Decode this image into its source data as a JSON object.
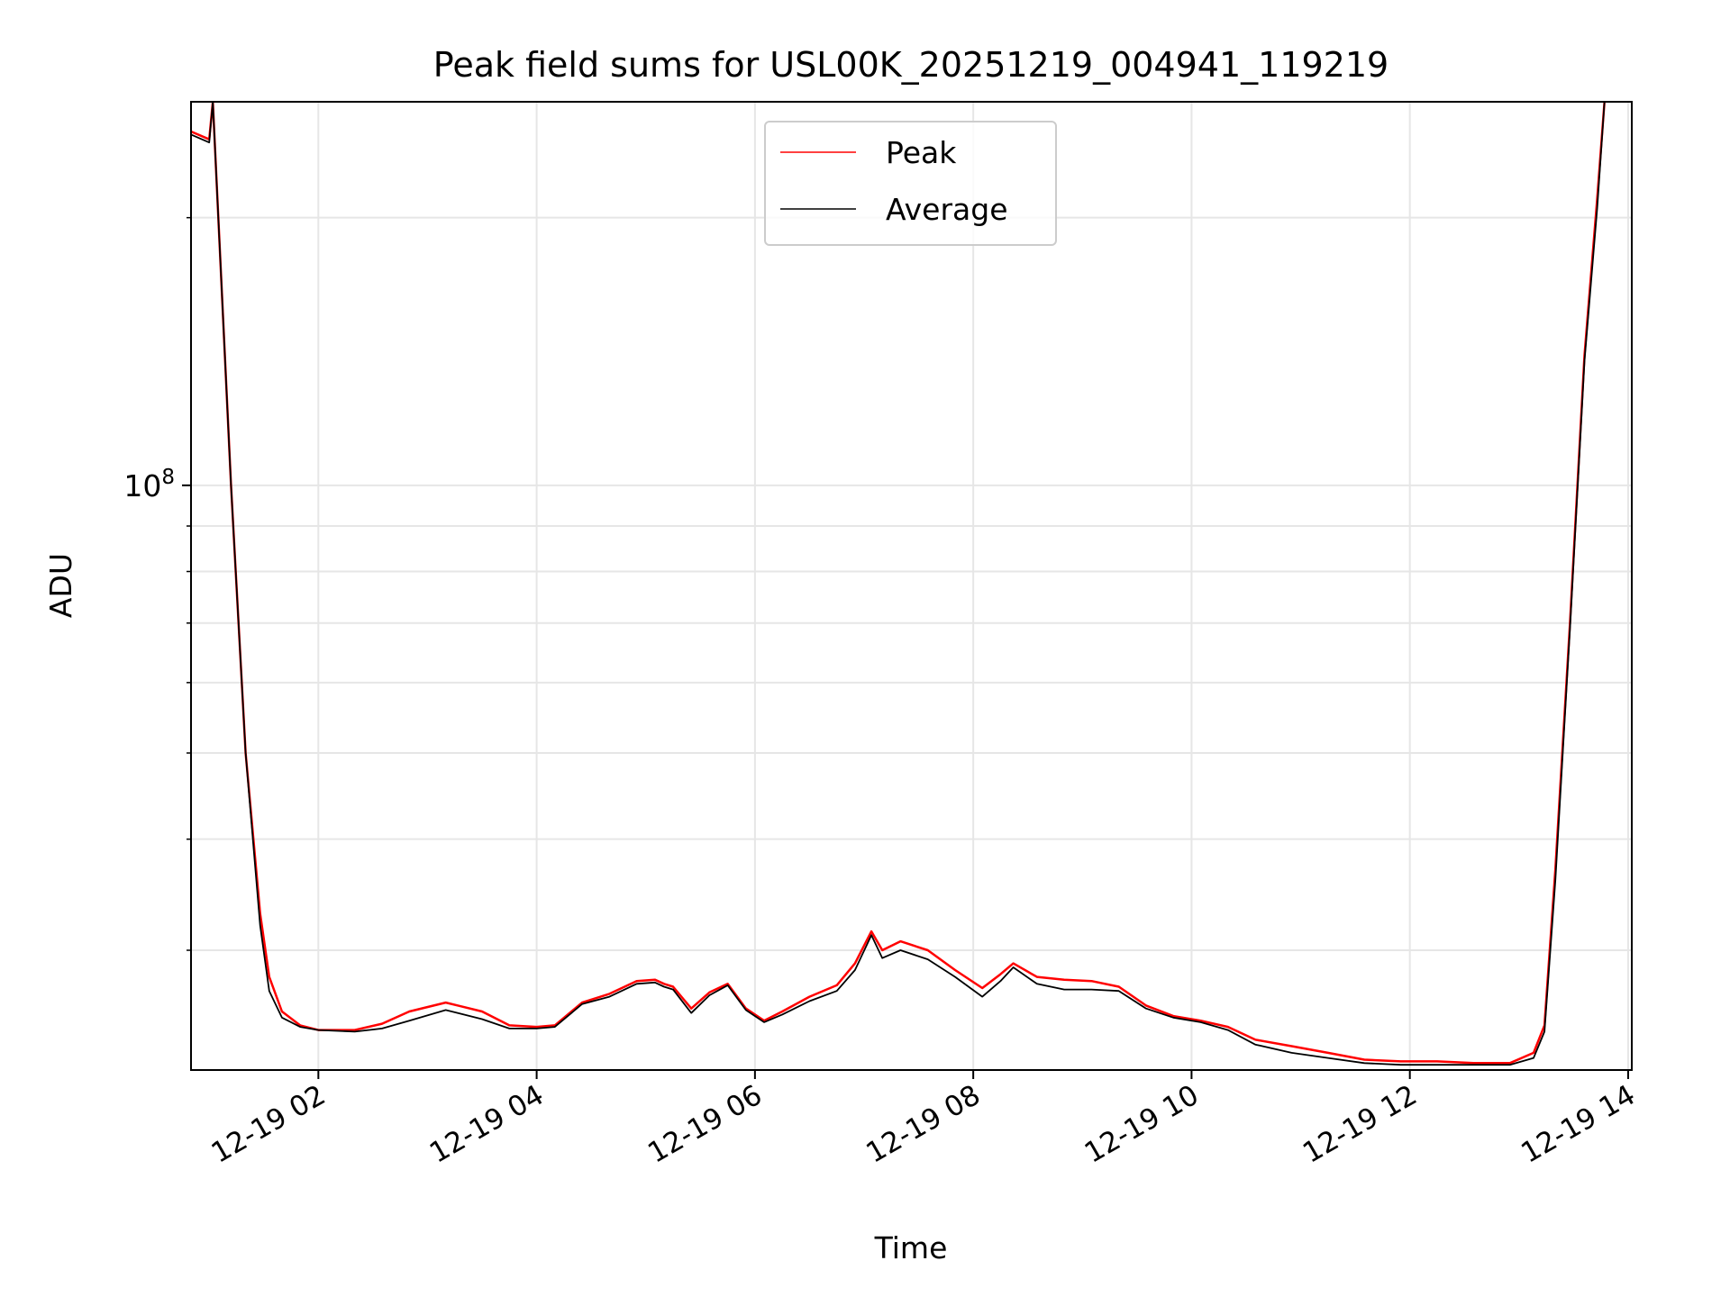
{
  "chart_data": {
    "type": "line",
    "title": "Peak field sums for USL00K_20251219_004941_119219",
    "xlabel": "Time",
    "ylabel": "ADU",
    "y_scale": "log",
    "ylim": [
      22000000,
      270000000
    ],
    "xlim": [
      "2025-12-19 00:50",
      "2025-12-19 14:02"
    ],
    "x_ticks": [
      {
        "t": "2025-12-19 02:00",
        "label": "12-19 02"
      },
      {
        "t": "2025-12-19 04:00",
        "label": "12-19 04"
      },
      {
        "t": "2025-12-19 06:00",
        "label": "12-19 06"
      },
      {
        "t": "2025-12-19 08:00",
        "label": "12-19 08"
      },
      {
        "t": "2025-12-19 10:00",
        "label": "12-19 10"
      },
      {
        "t": "2025-12-19 12:00",
        "label": "12-19 12"
      },
      {
        "t": "2025-12-19 14:00",
        "label": "12-19 14"
      }
    ],
    "y_major_ticks": [
      {
        "value": 100000000,
        "base": "10",
        "exp": "8"
      }
    ],
    "y_minor_ticks": [
      30000000,
      40000000,
      50000000,
      60000000,
      70000000,
      80000000,
      90000000,
      200000000
    ],
    "grid": true,
    "legend_position": "upper-center",
    "series": [
      {
        "name": "Peak",
        "color": "#ff0000",
        "points": [
          [
            "2025-12-19 00:50",
            250000000
          ],
          [
            "2025-12-19 01:00",
            245000000
          ],
          [
            "2025-12-19 01:02",
            270000000
          ],
          [
            "2025-12-19 01:05",
            200000000
          ],
          [
            "2025-12-19 01:12",
            100000000
          ],
          [
            "2025-12-19 01:20",
            50000000
          ],
          [
            "2025-12-19 01:28",
            33000000
          ],
          [
            "2025-12-19 01:33",
            28000000
          ],
          [
            "2025-12-19 01:40",
            25600000
          ],
          [
            "2025-12-19 01:50",
            24700000
          ],
          [
            "2025-12-19 02:00",
            24400000
          ],
          [
            "2025-12-19 02:20",
            24400000
          ],
          [
            "2025-12-19 02:35",
            24800000
          ],
          [
            "2025-12-19 02:50",
            25600000
          ],
          [
            "2025-12-19 03:10",
            26200000
          ],
          [
            "2025-12-19 03:30",
            25600000
          ],
          [
            "2025-12-19 03:45",
            24700000
          ],
          [
            "2025-12-19 04:00",
            24600000
          ],
          [
            "2025-12-19 04:10",
            24700000
          ],
          [
            "2025-12-19 04:25",
            26200000
          ],
          [
            "2025-12-19 04:40",
            26800000
          ],
          [
            "2025-12-19 04:55",
            27700000
          ],
          [
            "2025-12-19 05:05",
            27800000
          ],
          [
            "2025-12-19 05:10",
            27500000
          ],
          [
            "2025-12-19 05:15",
            27300000
          ],
          [
            "2025-12-19 05:25",
            25800000
          ],
          [
            "2025-12-19 05:35",
            26900000
          ],
          [
            "2025-12-19 05:45",
            27500000
          ],
          [
            "2025-12-19 05:55",
            25800000
          ],
          [
            "2025-12-19 06:05",
            25000000
          ],
          [
            "2025-12-19 06:15",
            25600000
          ],
          [
            "2025-12-19 06:30",
            26600000
          ],
          [
            "2025-12-19 06:45",
            27400000
          ],
          [
            "2025-12-19 06:55",
            29000000
          ],
          [
            "2025-12-19 07:04",
            31500000
          ],
          [
            "2025-12-19 07:10",
            30000000
          ],
          [
            "2025-12-19 07:20",
            30700000
          ],
          [
            "2025-12-19 07:35",
            30000000
          ],
          [
            "2025-12-19 07:50",
            28500000
          ],
          [
            "2025-12-19 08:05",
            27200000
          ],
          [
            "2025-12-19 08:15",
            28200000
          ],
          [
            "2025-12-19 08:22",
            29000000
          ],
          [
            "2025-12-19 08:35",
            28000000
          ],
          [
            "2025-12-19 08:50",
            27800000
          ],
          [
            "2025-12-19 09:05",
            27700000
          ],
          [
            "2025-12-19 09:20",
            27300000
          ],
          [
            "2025-12-19 09:35",
            26000000
          ],
          [
            "2025-12-19 09:50",
            25300000
          ],
          [
            "2025-12-19 10:05",
            25000000
          ],
          [
            "2025-12-19 10:20",
            24600000
          ],
          [
            "2025-12-19 10:35",
            23800000
          ],
          [
            "2025-12-19 10:55",
            23400000
          ],
          [
            "2025-12-19 11:15",
            23000000
          ],
          [
            "2025-12-19 11:35",
            22600000
          ],
          [
            "2025-12-19 11:55",
            22500000
          ],
          [
            "2025-12-19 12:15",
            22500000
          ],
          [
            "2025-12-19 12:35",
            22400000
          ],
          [
            "2025-12-19 12:55",
            22400000
          ],
          [
            "2025-12-19 13:08",
            23000000
          ],
          [
            "2025-12-19 13:14",
            24700000
          ],
          [
            "2025-12-19 13:20",
            37000000
          ],
          [
            "2025-12-19 13:28",
            70000000
          ],
          [
            "2025-12-19 13:36",
            140000000
          ],
          [
            "2025-12-19 13:43",
            210000000
          ],
          [
            "2025-12-19 13:47",
            270000000
          ]
        ]
      },
      {
        "name": "Average",
        "color": "#000000",
        "points": [
          [
            "2025-12-19 00:50",
            248000000
          ],
          [
            "2025-12-19 01:00",
            243000000
          ],
          [
            "2025-12-19 01:02",
            270000000
          ],
          [
            "2025-12-19 01:05",
            200000000
          ],
          [
            "2025-12-19 01:12",
            100000000
          ],
          [
            "2025-12-19 01:20",
            50000000
          ],
          [
            "2025-12-19 01:28",
            32000000
          ],
          [
            "2025-12-19 01:33",
            27000000
          ],
          [
            "2025-12-19 01:40",
            25200000
          ],
          [
            "2025-12-19 01:50",
            24600000
          ],
          [
            "2025-12-19 02:00",
            24400000
          ],
          [
            "2025-12-19 02:20",
            24300000
          ],
          [
            "2025-12-19 02:35",
            24500000
          ],
          [
            "2025-12-19 02:50",
            25000000
          ],
          [
            "2025-12-19 03:10",
            25700000
          ],
          [
            "2025-12-19 03:30",
            25100000
          ],
          [
            "2025-12-19 03:45",
            24500000
          ],
          [
            "2025-12-19 04:00",
            24500000
          ],
          [
            "2025-12-19 04:10",
            24600000
          ],
          [
            "2025-12-19 04:25",
            26100000
          ],
          [
            "2025-12-19 04:40",
            26600000
          ],
          [
            "2025-12-19 04:55",
            27500000
          ],
          [
            "2025-12-19 05:05",
            27600000
          ],
          [
            "2025-12-19 05:10",
            27300000
          ],
          [
            "2025-12-19 05:15",
            27100000
          ],
          [
            "2025-12-19 05:25",
            25500000
          ],
          [
            "2025-12-19 05:35",
            26700000
          ],
          [
            "2025-12-19 05:45",
            27400000
          ],
          [
            "2025-12-19 05:55",
            25700000
          ],
          [
            "2025-12-19 06:05",
            24900000
          ],
          [
            "2025-12-19 06:15",
            25400000
          ],
          [
            "2025-12-19 06:30",
            26300000
          ],
          [
            "2025-12-19 06:45",
            27000000
          ],
          [
            "2025-12-19 06:55",
            28500000
          ],
          [
            "2025-12-19 07:04",
            31200000
          ],
          [
            "2025-12-19 07:10",
            29400000
          ],
          [
            "2025-12-19 07:20",
            30000000
          ],
          [
            "2025-12-19 07:35",
            29300000
          ],
          [
            "2025-12-19 07:50",
            28000000
          ],
          [
            "2025-12-19 08:05",
            26600000
          ],
          [
            "2025-12-19 08:15",
            27700000
          ],
          [
            "2025-12-19 08:22",
            28700000
          ],
          [
            "2025-12-19 08:35",
            27500000
          ],
          [
            "2025-12-19 08:50",
            27100000
          ],
          [
            "2025-12-19 09:05",
            27100000
          ],
          [
            "2025-12-19 09:20",
            27000000
          ],
          [
            "2025-12-19 09:35",
            25800000
          ],
          [
            "2025-12-19 09:50",
            25200000
          ],
          [
            "2025-12-19 10:05",
            24900000
          ],
          [
            "2025-12-19 10:20",
            24400000
          ],
          [
            "2025-12-19 10:35",
            23500000
          ],
          [
            "2025-12-19 10:55",
            23000000
          ],
          [
            "2025-12-19 11:15",
            22700000
          ],
          [
            "2025-12-19 11:35",
            22400000
          ],
          [
            "2025-12-19 11:55",
            22300000
          ],
          [
            "2025-12-19 12:15",
            22300000
          ],
          [
            "2025-12-19 12:35",
            22300000
          ],
          [
            "2025-12-19 12:55",
            22300000
          ],
          [
            "2025-12-19 13:08",
            22700000
          ],
          [
            "2025-12-19 13:14",
            24300000
          ],
          [
            "2025-12-19 13:20",
            36000000
          ],
          [
            "2025-12-19 13:28",
            69000000
          ],
          [
            "2025-12-19 13:36",
            138000000
          ],
          [
            "2025-12-19 13:43",
            205000000
          ],
          [
            "2025-12-19 13:47",
            270000000
          ]
        ]
      }
    ]
  }
}
